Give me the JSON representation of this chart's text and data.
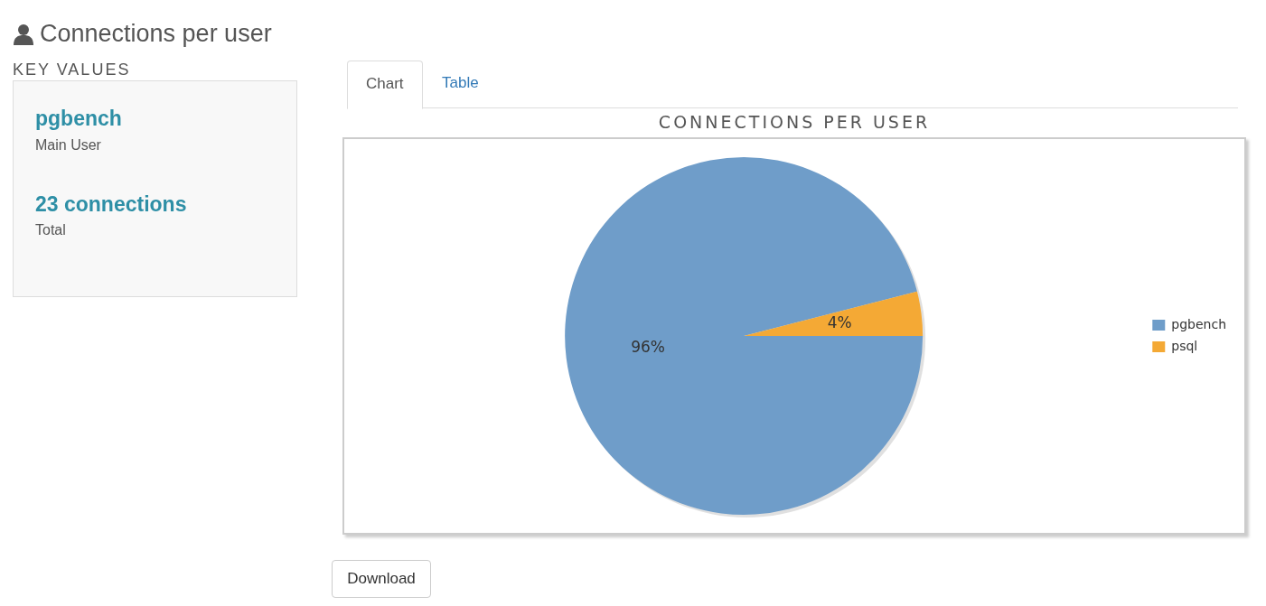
{
  "chart_data": [
    {
      "type": "other",
      "title": "Connections per user",
      "subtitle": "KEY VALUES",
      "annotations": [
        "pgbench",
        "Main User",
        "23 connections",
        "Total"
      ]
    },
    {
      "type": "pie",
      "title": "CONNECTIONS PER USER",
      "categories": [
        "pgbench",
        "psql"
      ],
      "values": [
        96,
        4
      ],
      "colors": [
        "#6f9dc9",
        "#f4a935"
      ],
      "value_labels": [
        "96%",
        "4%"
      ],
      "legend": "right",
      "annotations": [
        "Chart",
        "Table",
        "Download"
      ]
    }
  ]
}
